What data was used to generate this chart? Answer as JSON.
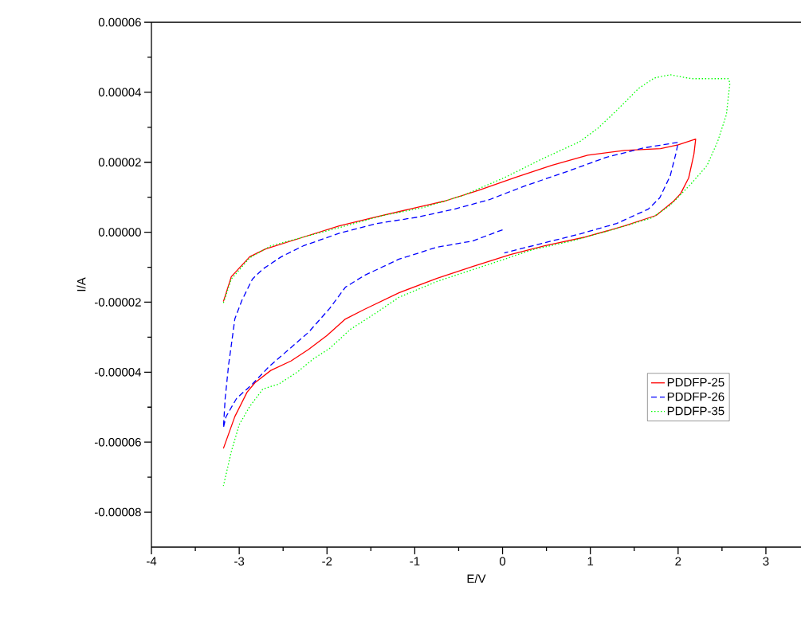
{
  "chart_data": {
    "type": "line",
    "xlabel": "E/V",
    "ylabel": "I/A",
    "xlim": [
      -4,
      3.4
    ],
    "ylim": [
      -9e-05,
      6e-05
    ],
    "xticks": [
      -4,
      -3,
      -2,
      -1,
      0,
      1,
      2,
      3
    ],
    "yticks": [
      {
        "value": -8e-05,
        "label": "-0.00008"
      },
      {
        "value": -6e-05,
        "label": "-0.00006"
      },
      {
        "value": -4e-05,
        "label": "-0.00004"
      },
      {
        "value": -2e-05,
        "label": "-0.00002"
      },
      {
        "value": 0,
        "label": "0.00000"
      },
      {
        "value": 2e-05,
        "label": "0.00002"
      },
      {
        "value": 4e-05,
        "label": "0.00004"
      },
      {
        "value": 6e-05,
        "label": "0.00006"
      }
    ],
    "legend": "right",
    "grid": false,
    "series": [
      {
        "name": "PDDFP-25",
        "color": "#ff0000",
        "line_style": "solid",
        "x": [
          -3.18,
          -3.09,
          -2.88,
          -2.7,
          -2.27,
          -1.86,
          -1.45,
          -1.06,
          -0.66,
          -0.27,
          0.15,
          0.56,
          0.97,
          1.39,
          1.8,
          2.0,
          2.2,
          2.18,
          2.12,
          2.03,
          1.95,
          1.75,
          1.39,
          0.94,
          0.48,
          0.09,
          -0.34,
          -0.75,
          -1.18,
          -1.57,
          -1.79,
          -2.0,
          -2.21,
          -2.41,
          -2.64,
          -2.82,
          -2.91,
          -3.05,
          -3.18
        ],
        "values": [
          -1.98e-05,
          -1.27e-05,
          -7e-06,
          -4.8e-06,
          -1.4e-06,
          1.8e-06,
          4.3e-06,
          6.6e-06,
          8.9e-06,
          1.2e-05,
          1.57e-05,
          1.91e-05,
          2.2e-05,
          2.34e-05,
          2.39e-05,
          2.5e-05,
          2.66e-05,
          2.23e-05,
          1.55e-05,
          1.11e-05,
          8.9e-06,
          4.8e-06,
          1.8e-06,
          -1.4e-06,
          -3.9e-06,
          -6.4e-06,
          -9.8e-06,
          -1.32e-05,
          -1.73e-05,
          -2.2e-05,
          -2.48e-05,
          -2.95e-05,
          -3.35e-05,
          -3.68e-05,
          -3.95e-05,
          -4.3e-05,
          -4.57e-05,
          -5.27e-05,
          -6.18e-05
        ]
      },
      {
        "name": "PDDFP-26",
        "color": "#0000ff",
        "line_style": "dashed",
        "x": [
          0.0,
          -0.34,
          -0.75,
          -1.18,
          -1.57,
          -1.79,
          -1.97,
          -2.21,
          -2.43,
          -2.66,
          -2.85,
          -3.03,
          -3.15,
          -3.18,
          -3.16,
          -3.12,
          -3.09,
          -3.05,
          -2.97,
          -2.85,
          -2.73,
          -2.52,
          -2.27,
          -1.85,
          -1.43,
          -0.97,
          -0.55,
          -0.15,
          0.25,
          0.73,
          1.18,
          1.61,
          2.0,
          1.98,
          1.91,
          1.79,
          1.66,
          1.3,
          0.88,
          0.45,
          0.02
        ],
        "values": [
          7e-07,
          -2.5e-06,
          -4.3e-06,
          -7.7e-06,
          -1.23e-05,
          -1.57e-05,
          -2.18e-05,
          -2.86e-05,
          -3.34e-05,
          -3.84e-05,
          -4.34e-05,
          -4.75e-05,
          -5.27e-05,
          -5.59e-05,
          -4.75e-05,
          -3.77e-05,
          -3.23e-05,
          -2.48e-05,
          -1.95e-05,
          -1.34e-05,
          -1.05e-05,
          -7e-06,
          -3.9e-06,
          -2e-07,
          2.5e-06,
          4.3e-06,
          6.6e-06,
          9.3e-06,
          1.32e-05,
          1.73e-05,
          2.14e-05,
          2.41e-05,
          2.57e-05,
          2.3e-05,
          1.61e-05,
          9.8e-06,
          6.6e-06,
          2.5e-06,
          -5e-07,
          -3.2e-06,
          -5.9e-06
        ]
      },
      {
        "name": "PDDFP-35",
        "color": "#00ff00",
        "line_style": "dotted",
        "x": [
          -3.18,
          -3.09,
          -2.88,
          -2.64,
          -2.27,
          -1.79,
          -1.36,
          -0.91,
          -0.45,
          0.03,
          0.43,
          0.88,
          1.09,
          1.3,
          1.55,
          1.73,
          1.91,
          2.15,
          2.57,
          2.59,
          2.55,
          2.45,
          2.33,
          2.15,
          1.91,
          1.7,
          1.25,
          0.79,
          0.34,
          -0.12,
          -0.34,
          -0.75,
          -1.18,
          -1.45,
          -1.73,
          -1.97,
          -2.15,
          -2.34,
          -2.55,
          -2.73,
          -2.88,
          -3.0,
          -3.09,
          -3.18
        ],
        "values": [
          -2.02e-05,
          -1.34e-05,
          -7.3e-06,
          -3.9e-06,
          -1.4e-06,
          1.8e-06,
          4.8e-06,
          7e-06,
          1.05e-05,
          1.57e-05,
          2.07e-05,
          2.59e-05,
          2.98e-05,
          3.48e-05,
          4.11e-05,
          4.41e-05,
          4.5e-05,
          4.39e-05,
          4.39e-05,
          4.27e-05,
          3.36e-05,
          2.59e-05,
          1.91e-05,
          1.39e-05,
          7.7e-06,
          4.1e-06,
          7e-07,
          -2.5e-06,
          -5e-06,
          -8.9e-06,
          -1.07e-05,
          -1.41e-05,
          -1.86e-05,
          -2.32e-05,
          -2.77e-05,
          -3.32e-05,
          -3.61e-05,
          -4e-05,
          -4.34e-05,
          -4.48e-05,
          -4.98e-05,
          -5.5e-05,
          -6.27e-05,
          -7.25e-05
        ]
      }
    ]
  }
}
